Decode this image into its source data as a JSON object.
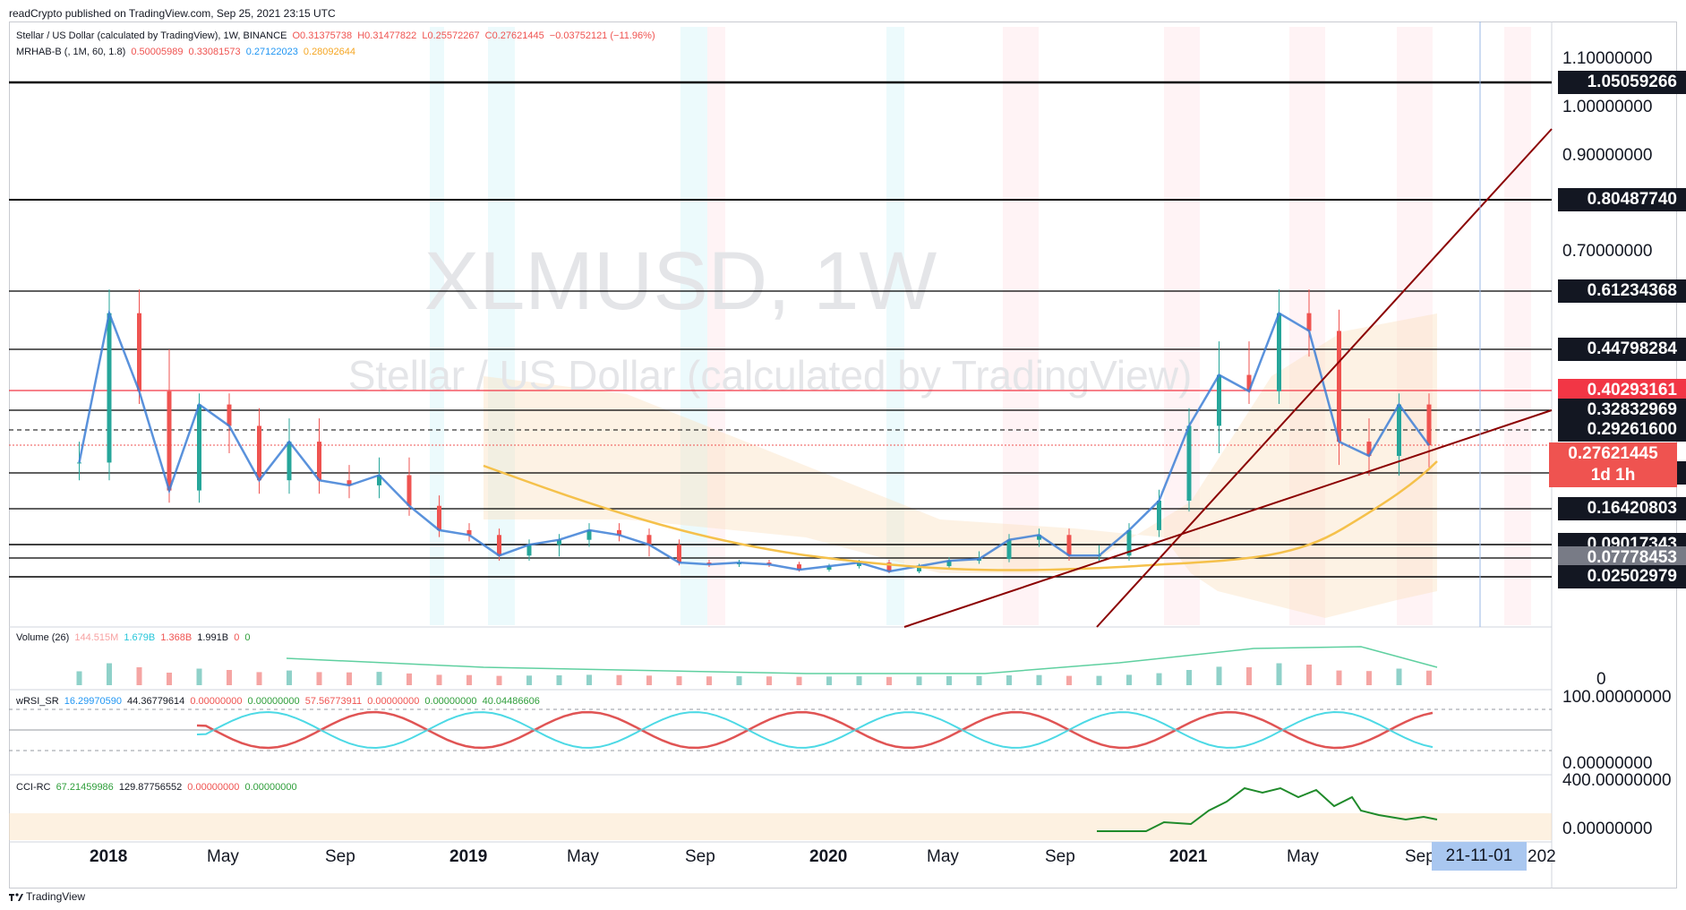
{
  "header": {
    "published": "readCrypto published on TradingView.com, Sep 25, 2021 23:15 UTC"
  },
  "main_legend": {
    "symbol": "Stellar / US Dollar (calculated by TradingView), 1W, BINANCE",
    "o": "O0.31375738",
    "h": "H0.31477822",
    "l": "L0.25572267",
    "c": "C0.27621445",
    "change": "−0.03752121 (−11.96%)"
  },
  "mrhab_legend": {
    "name": "MRHAB-B (, 1M, 60, 1.8)",
    "v1": "0.50005989",
    "v2": "0.33081573",
    "v3": "0.27122023",
    "v4": "0.28092644"
  },
  "watermark": {
    "ticker": "XLMUSD, 1W",
    "description": "Stellar / US Dollar (calculated by TradingView)"
  },
  "price_scale": {
    "ticks": [
      "1.10000000",
      "1.00000000",
      "0.90000000",
      "0.70000000"
    ],
    "labels": [
      {
        "text": "1.05059266",
        "bg": "#131722"
      },
      {
        "text": "0.80487740",
        "bg": "#131722"
      },
      {
        "text": "0.61234368",
        "bg": "#131722"
      },
      {
        "text": "0.44798284",
        "bg": "#131722"
      },
      {
        "text": "0.40293161",
        "bg": "#f23645"
      },
      {
        "text": "0.32832969",
        "bg": "#131722"
      },
      {
        "text": "0.29261600",
        "bg": "#131722"
      },
      {
        "text": "0.23438790",
        "bg": "#131722"
      },
      {
        "text": "0.16420803",
        "bg": "#131722"
      },
      {
        "text": "0.09017343",
        "bg": "#131722"
      },
      {
        "text": "0.07778453",
        "bg": "#787b86"
      },
      {
        "text": "0.02502979",
        "bg": "#131722"
      }
    ],
    "current": {
      "price": "0.27621445",
      "countdown": "1d 1h",
      "bg": "#ef5350"
    }
  },
  "volume": {
    "legend": {
      "name": "Volume (26)",
      "v1": "144.515M",
      "v2": "1.679B",
      "v3": "1.368B",
      "v4": "1.991B",
      "v5": "0",
      "v6": "0"
    },
    "scale": "0"
  },
  "wrsi": {
    "legend": {
      "name": "wRSI_SR",
      "v1": "16.29970590",
      "v2": "44.36779614",
      "v3": "0.00000000",
      "v4": "0.00000000",
      "v5": "57.56773911",
      "v6": "0.00000000",
      "v7": "0.00000000",
      "v8": "40.04486606"
    },
    "scale_top": "100.00000000",
    "scale_bottom": "0.00000000"
  },
  "cci": {
    "legend": {
      "name": "CCI-RC",
      "v1": "67.21459986",
      "v2": "129.87756552",
      "v3": "0.00000000",
      "v4": "0.00000000"
    },
    "scale_top": "400.00000000",
    "scale_bottom": "0.00000000"
  },
  "time_axis": {
    "labels": [
      "2018",
      "May",
      "Sep",
      "2019",
      "May",
      "Sep",
      "2020",
      "May",
      "Sep",
      "2021",
      "May",
      "Sep"
    ],
    "cursor_label": "21-11-01",
    "edge_label": "202"
  },
  "footer": {
    "brand": "TradingView"
  },
  "colors": {
    "up": "#26a69a",
    "down": "#ef5350",
    "upper_band": "#ef9a9a",
    "lower_band": "#80deea",
    "level_line": "#000000",
    "trendline": "#8b0000"
  },
  "chart_data": {
    "type": "candlestick",
    "title": "XLMUSD, 1W",
    "horizontal_levels": [
      1.05059266,
      0.8048774,
      0.61234368,
      0.44798284,
      0.40293161,
      0.32832969,
      0.292616,
      0.2343879,
      0.16420803,
      0.09017343,
      0.07778453,
      0.02502979
    ],
    "current_price": 0.27621445,
    "approx_close_series": [
      {
        "date": "2017-12",
        "close": 0.25
      },
      {
        "date": "2018-01",
        "close": 0.55
      },
      {
        "date": "2018-02",
        "close": 0.4
      },
      {
        "date": "2018-03",
        "close": 0.2
      },
      {
        "date": "2018-04",
        "close": 0.35
      },
      {
        "date": "2018-05",
        "close": 0.3
      },
      {
        "date": "2018-06",
        "close": 0.22
      },
      {
        "date": "2018-07",
        "close": 0.28
      },
      {
        "date": "2018-08",
        "close": 0.22
      },
      {
        "date": "2018-09",
        "close": 0.21
      },
      {
        "date": "2018-10",
        "close": 0.23
      },
      {
        "date": "2018-11",
        "close": 0.17
      },
      {
        "date": "2018-12",
        "close": 0.12
      },
      {
        "date": "2019-01",
        "close": 0.11
      },
      {
        "date": "2019-02",
        "close": 0.08
      },
      {
        "date": "2019-03",
        "close": 0.09
      },
      {
        "date": "2019-04",
        "close": 0.1
      },
      {
        "date": "2019-05",
        "close": 0.12
      },
      {
        "date": "2019-06",
        "close": 0.11
      },
      {
        "date": "2019-07",
        "close": 0.09
      },
      {
        "date": "2019-08",
        "close": 0.065
      },
      {
        "date": "2019-09",
        "close": 0.06
      },
      {
        "date": "2019-10",
        "close": 0.065
      },
      {
        "date": "2019-11",
        "close": 0.06
      },
      {
        "date": "2019-12",
        "close": 0.045
      },
      {
        "date": "2020-01",
        "close": 0.055
      },
      {
        "date": "2020-02",
        "close": 0.065
      },
      {
        "date": "2020-03",
        "close": 0.04
      },
      {
        "date": "2020-04",
        "close": 0.055
      },
      {
        "date": "2020-05",
        "close": 0.07
      },
      {
        "date": "2020-06",
        "close": 0.075
      },
      {
        "date": "2020-07",
        "close": 0.1
      },
      {
        "date": "2020-08",
        "close": 0.11
      },
      {
        "date": "2020-09",
        "close": 0.08
      },
      {
        "date": "2020-10",
        "close": 0.08
      },
      {
        "date": "2020-11",
        "close": 0.12
      },
      {
        "date": "2020-12",
        "close": 0.18
      },
      {
        "date": "2021-01",
        "close": 0.3
      },
      {
        "date": "2021-02",
        "close": 0.42
      },
      {
        "date": "2021-03",
        "close": 0.4
      },
      {
        "date": "2021-04",
        "close": 0.55
      },
      {
        "date": "2021-05",
        "close": 0.5
      },
      {
        "date": "2021-06",
        "close": 0.28
      },
      {
        "date": "2021-07",
        "close": 0.26
      },
      {
        "date": "2021-08",
        "close": 0.35
      },
      {
        "date": "2021-09",
        "close": 0.276
      }
    ]
  }
}
